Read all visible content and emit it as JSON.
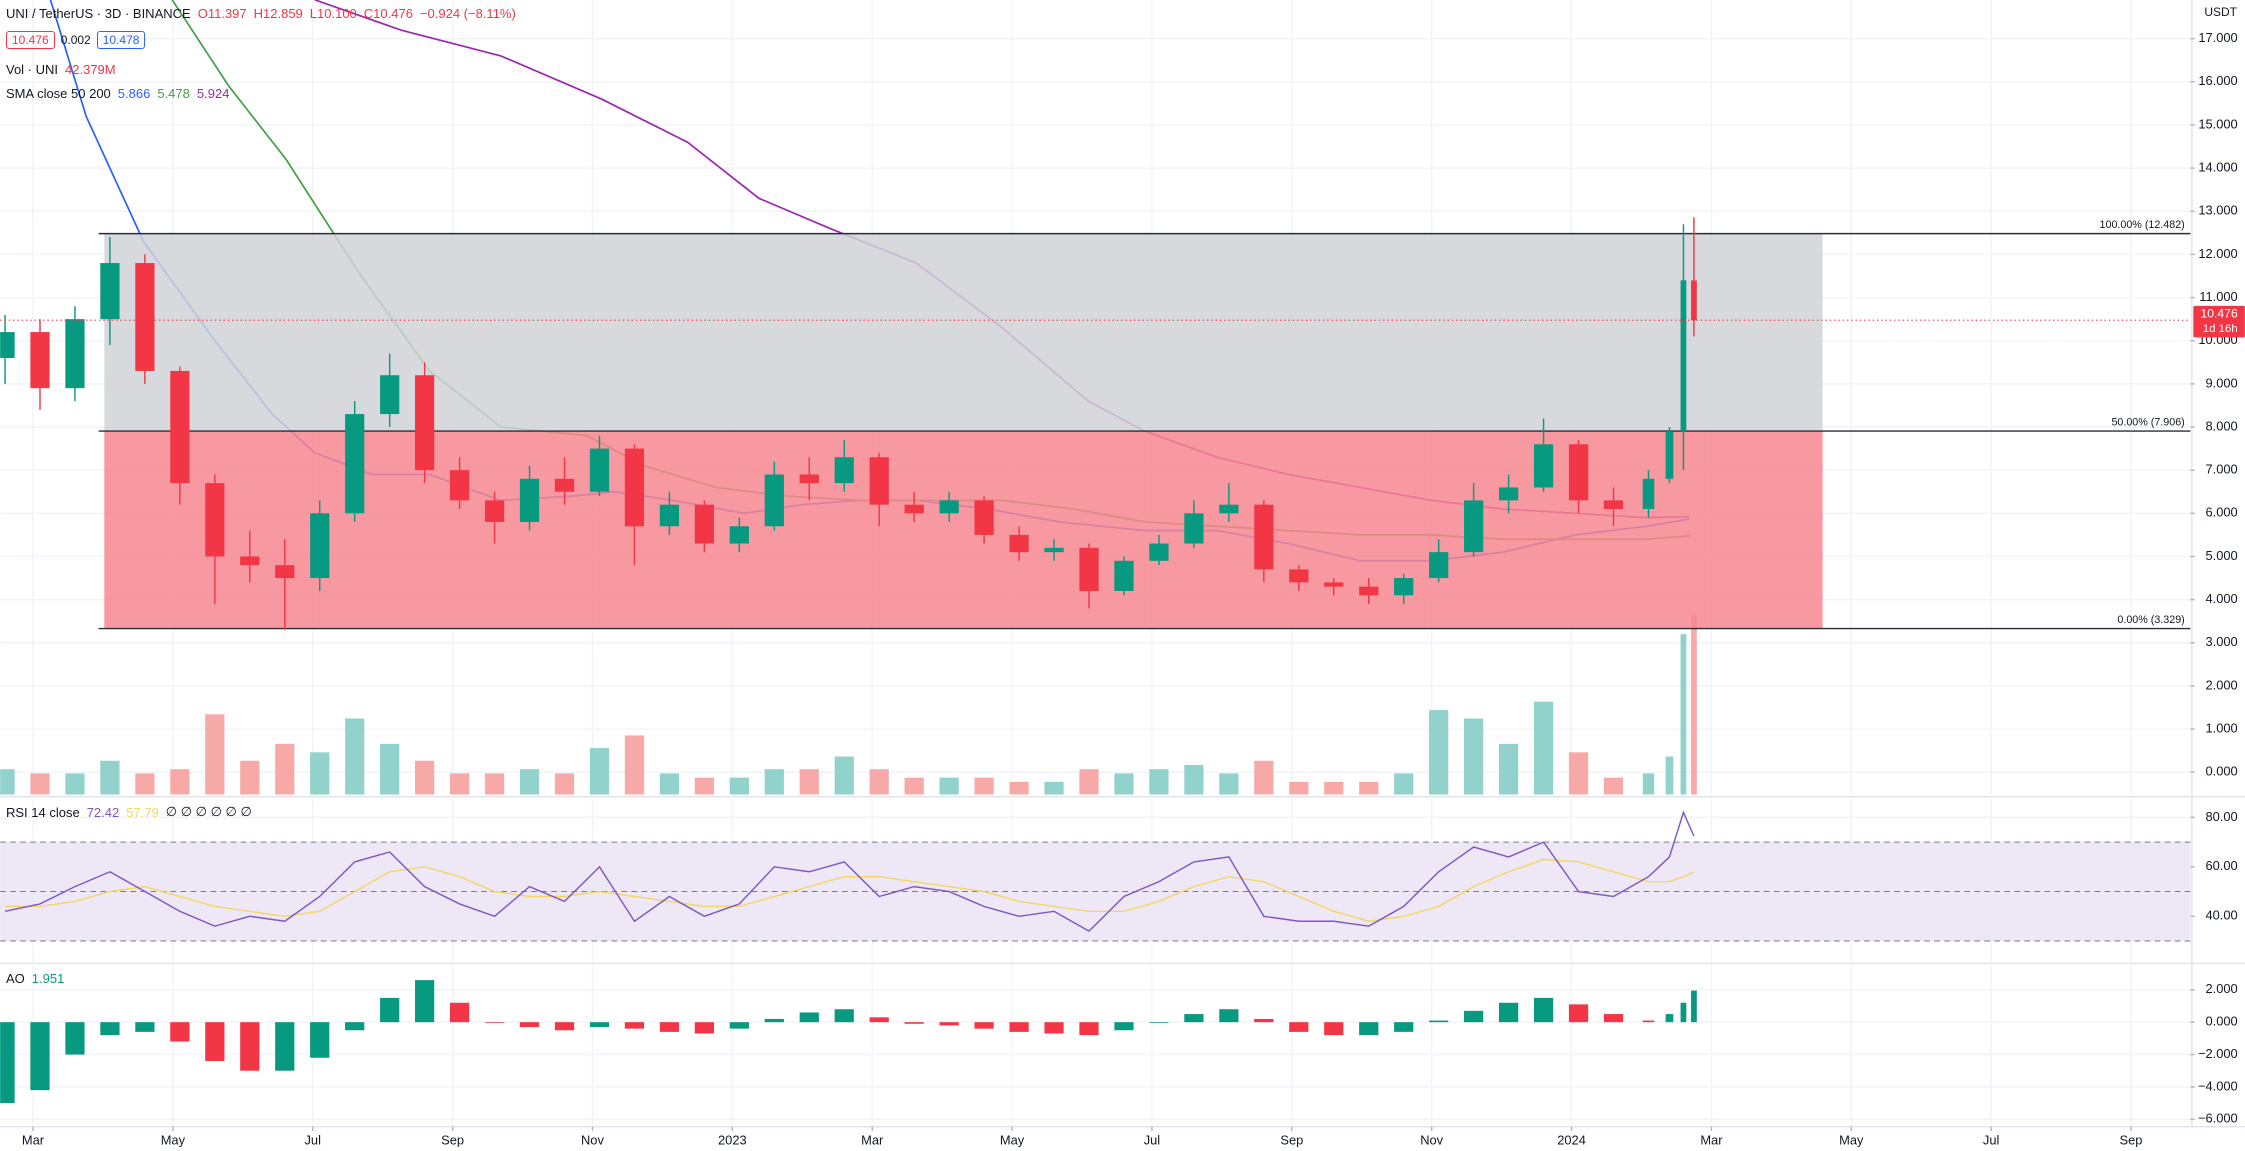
{
  "chart_data": [
    {
      "type": "candlestick",
      "title": "UNI / TetherUS · 3D · BINANCE",
      "ohlc_labels": [
        "O11.397",
        "H12.859",
        "L10.100",
        "C10.476",
        "−0.924 (−8.11%)"
      ],
      "price_boxes": [
        "10.476",
        "0.002",
        "10.478"
      ],
      "currency": "USDT",
      "indicator_name": "SMA close 50 200",
      "x": [
        -0.4,
        0.1,
        0.6,
        1.1,
        1.6,
        2.1,
        2.6,
        3.1,
        3.6,
        4.1,
        4.6,
        5.1,
        5.6,
        6.1,
        6.6,
        7.1,
        7.6,
        8.1,
        8.6,
        9.1,
        9.6,
        10.1,
        10.6,
        11.1,
        11.6,
        12.1,
        12.6,
        13.1,
        13.6,
        14.1,
        14.6,
        15.1,
        15.6,
        16.1,
        16.6,
        17.1,
        17.6,
        18.1,
        18.6,
        19.1,
        19.6,
        20.1,
        20.6,
        21.1,
        21.6,
        22.1,
        22.6,
        23.1,
        23.4,
        23.6,
        23.75
      ],
      "open": [
        9.6,
        10.2,
        8.9,
        10.5,
        11.8,
        9.3,
        6.7,
        5.0,
        4.8,
        4.5,
        6.0,
        8.3,
        9.2,
        7.0,
        6.3,
        5.8,
        6.8,
        6.5,
        7.5,
        5.7,
        6.2,
        5.3,
        5.7,
        6.9,
        6.7,
        7.3,
        6.2,
        6.0,
        6.3,
        5.5,
        5.1,
        5.2,
        4.2,
        4.9,
        5.3,
        6.0,
        6.2,
        4.7,
        4.4,
        4.3,
        4.1,
        4.5,
        5.1,
        6.3,
        6.6,
        7.6,
        6.3,
        6.1,
        6.8,
        7.9,
        11.397
      ],
      "high": [
        10.6,
        10.5,
        10.8,
        12.4,
        12.0,
        9.4,
        6.9,
        5.6,
        5.4,
        6.3,
        8.6,
        9.7,
        9.5,
        7.3,
        6.5,
        7.1,
        7.3,
        7.8,
        7.6,
        6.5,
        6.3,
        5.9,
        7.2,
        7.3,
        7.7,
        7.4,
        6.5,
        6.5,
        6.4,
        5.7,
        5.4,
        5.3,
        5.0,
        5.5,
        6.3,
        6.7,
        6.3,
        4.8,
        4.5,
        4.5,
        4.6,
        5.4,
        6.7,
        6.9,
        8.2,
        7.7,
        6.6,
        7.0,
        8.0,
        12.7,
        12.859
      ],
      "low": [
        9.0,
        8.4,
        8.6,
        9.9,
        9.0,
        6.2,
        3.9,
        4.4,
        3.3,
        4.2,
        5.8,
        8.0,
        6.7,
        6.1,
        5.3,
        5.6,
        6.2,
        6.4,
        4.8,
        5.5,
        5.1,
        5.1,
        5.6,
        6.3,
        6.5,
        5.7,
        5.8,
        5.8,
        5.3,
        4.9,
        4.9,
        3.8,
        4.1,
        4.8,
        5.2,
        5.8,
        4.4,
        4.2,
        4.1,
        3.9,
        3.9,
        4.4,
        5.0,
        6.0,
        6.5,
        6.0,
        5.7,
        5.9,
        6.7,
        7.0,
        10.1
      ],
      "close": [
        10.2,
        8.9,
        10.5,
        11.8,
        9.3,
        6.7,
        5.0,
        4.8,
        4.5,
        6.0,
        8.3,
        9.2,
        7.0,
        6.3,
        5.8,
        6.8,
        6.5,
        7.5,
        5.7,
        6.2,
        5.3,
        5.7,
        6.9,
        6.7,
        7.3,
        6.2,
        6.0,
        6.3,
        5.5,
        5.1,
        5.2,
        4.2,
        4.9,
        5.3,
        6.0,
        6.2,
        4.7,
        4.4,
        4.3,
        4.1,
        4.5,
        5.1,
        6.3,
        6.6,
        7.6,
        6.3,
        6.1,
        6.8,
        7.9,
        11.4,
        10.476
      ],
      "up_color": "#089981",
      "down_color": "#f23645",
      "volume": {
        "name": "Vol · UNI",
        "last_label": "42.379M",
        "up_color": "#92d2cc",
        "down_color": "#f7a9a7",
        "values": [
          6,
          5,
          5,
          8,
          5,
          6,
          19,
          8,
          12,
          10,
          18,
          12,
          8,
          5,
          5,
          6,
          5,
          11,
          14,
          5,
          4,
          4,
          6,
          6,
          9,
          6,
          4,
          4,
          4,
          3,
          3,
          6,
          5,
          6,
          7,
          5,
          8,
          3,
          3,
          3,
          5,
          20,
          18,
          12,
          22,
          10,
          4,
          5,
          9,
          38,
          42.379
        ]
      },
      "series": [
        {
          "value_label": "5.866",
          "color": "#2962ff",
          "x": [
            0.25,
            0.76,
            1.58,
            2.6,
            3.42,
            4.03,
            4.85,
            5.67,
            6.69,
            7.72,
            8.33,
            9.15,
            10.17,
            10.99,
            11.81,
            12.63,
            13.65,
            14.68,
            15.9,
            16.93,
            17.95,
            18.98,
            20.0,
            21.02,
            22.05,
            23.07,
            23.68
          ],
          "values": [
            17.9,
            15.2,
            12.3,
            10.0,
            8.3,
            7.4,
            6.9,
            6.9,
            6.3,
            6.4,
            6.5,
            6.3,
            6.0,
            6.2,
            6.3,
            6.3,
            6.1,
            5.8,
            5.6,
            5.6,
            5.3,
            4.9,
            4.9,
            5.1,
            5.5,
            5.7,
            5.866
          ]
        },
        {
          "value_label": "5.478",
          "color": "#43a047",
          "x": [
            1.99,
            2.8,
            3.62,
            4.65,
            5.67,
            6.69,
            7.92,
            8.74,
            9.76,
            10.79,
            11.81,
            12.84,
            13.86,
            14.88,
            15.9,
            16.93,
            17.95,
            18.98,
            20.0,
            21.02,
            22.05,
            23.07,
            23.68
          ],
          "values": [
            17.9,
            15.9,
            14.2,
            11.6,
            9.3,
            8.0,
            7.8,
            7.1,
            6.6,
            6.4,
            6.3,
            6.3,
            6.3,
            6.1,
            5.8,
            5.7,
            5.6,
            5.5,
            5.5,
            5.4,
            5.4,
            5.4,
            5.478
          ]
        },
        {
          "value_label": "5.924",
          "color": "#9c27b0",
          "x": [
            4.03,
            5.26,
            6.69,
            8.13,
            9.36,
            10.38,
            11.4,
            12.63,
            13.86,
            15.09,
            15.9,
            16.93,
            17.95,
            18.98,
            20.0,
            21.02,
            22.05,
            23.07,
            23.68
          ],
          "values": [
            17.9,
            17.2,
            16.6,
            15.6,
            14.6,
            13.3,
            12.6,
            11.8,
            10.3,
            8.6,
            7.9,
            7.3,
            6.9,
            6.6,
            6.3,
            6.1,
            6.0,
            5.9,
            5.924
          ]
        }
      ],
      "fib": {
        "x": [
          1.02,
          25.59
        ],
        "levels": [
          {
            "value": 12.482,
            "label": "100.00% (12.482)"
          },
          {
            "value": 7.906,
            "label": "50.00% (7.906)"
          },
          {
            "value": 3.329,
            "label": "0.00% (3.329)"
          }
        ],
        "colors": [
          "#d1d2d7",
          "#f7868f"
        ]
      },
      "last_price": {
        "value": 10.476,
        "label": "10.476",
        "countdown": "1d 16h"
      },
      "xlim": [
        -0.47,
        30.85
      ],
      "xticks": [
        {
          "value": 0,
          "label": "Mar"
        },
        {
          "value": 2,
          "label": "May"
        },
        {
          "value": 4,
          "label": "Jul"
        },
        {
          "value": 6,
          "label": "Sep"
        },
        {
          "value": 8,
          "label": "Nov"
        },
        {
          "value": 10,
          "label": "2023"
        },
        {
          "value": 12,
          "label": "Mar"
        },
        {
          "value": 14,
          "label": "May"
        },
        {
          "value": 16,
          "label": "Jul"
        },
        {
          "value": 18,
          "label": "Sep"
        },
        {
          "value": 20,
          "label": "Nov"
        },
        {
          "value": 22,
          "label": "2024"
        },
        {
          "value": 24,
          "label": "Mar"
        },
        {
          "value": 26,
          "label": "May"
        },
        {
          "value": 28,
          "label": "Jul"
        },
        {
          "value": 30,
          "label": "Sep"
        }
      ],
      "ylim": [
        -0.517,
        17.896
      ],
      "yticks": [
        {
          "value": 0,
          "label": "0.000"
        },
        {
          "value": 1,
          "label": "1.000"
        },
        {
          "value": 2,
          "label": "2.000"
        },
        {
          "value": 3,
          "label": "3.000"
        },
        {
          "value": 4,
          "label": "4.000"
        },
        {
          "value": 5,
          "label": "5.000"
        },
        {
          "value": 6,
          "label": "6.000"
        },
        {
          "value": 7,
          "label": "7.000"
        },
        {
          "value": 8,
          "label": "8.000"
        },
        {
          "value": 9,
          "label": "9.000"
        },
        {
          "value": 10,
          "label": "10.000"
        },
        {
          "value": 11,
          "label": "11.000"
        },
        {
          "value": 12,
          "label": "12.000"
        },
        {
          "value": 13,
          "label": "13.000"
        },
        {
          "value": 14,
          "label": "14.000"
        },
        {
          "value": 15,
          "label": "15.000"
        },
        {
          "value": 16,
          "label": "16.000"
        },
        {
          "value": 17,
          "label": "17.000"
        }
      ],
      "grid": true
    },
    {
      "type": "line",
      "title": "RSI 14 close",
      "extra_label": "∅ ∅ ∅ ∅ ∅ ∅",
      "series": [
        {
          "value_label": "72.42",
          "color": "#7e57c2",
          "values": [
            42,
            45,
            52,
            58,
            50,
            42,
            36,
            40,
            38,
            48,
            62,
            66,
            52,
            45,
            40,
            52,
            46,
            60,
            38,
            48,
            40,
            45,
            60,
            58,
            62,
            48,
            52,
            50,
            44,
            40,
            42,
            34,
            48,
            54,
            62,
            64,
            40,
            38,
            38,
            36,
            44,
            58,
            68,
            64,
            70,
            50,
            48,
            56,
            64,
            82,
            72.42
          ]
        },
        {
          "value_label": "57.79",
          "color": "#f5d565",
          "values": [
            44,
            44,
            46,
            50,
            52,
            48,
            44,
            42,
            40,
            42,
            50,
            58,
            60,
            56,
            50,
            48,
            48,
            50,
            48,
            46,
            44,
            44,
            48,
            52,
            56,
            56,
            54,
            52,
            50,
            46,
            44,
            42,
            42,
            46,
            52,
            56,
            54,
            48,
            42,
            38,
            40,
            44,
            52,
            58,
            63,
            62,
            58,
            54,
            54,
            56,
            57.79
          ]
        }
      ],
      "levels": [
        70,
        50,
        30
      ],
      "band_color": "#ede7f6",
      "ylim": [
        21.5,
        87.5
      ],
      "yticks": [
        {
          "value": 40,
          "label": "40.00"
        },
        {
          "value": 60,
          "label": "60.00"
        },
        {
          "value": 80,
          "label": "80.00"
        }
      ],
      "grid": true
    },
    {
      "type": "bar",
      "title": "AO",
      "value_label": "1.951",
      "up_color": "#089981",
      "down_color": "#f23645",
      "values": [
        -5.0,
        -4.2,
        -2.0,
        -0.8,
        -0.6,
        -1.2,
        -2.4,
        -3.0,
        -3.0,
        -2.2,
        -0.5,
        1.5,
        2.6,
        1.2,
        0.0,
        -0.3,
        -0.5,
        -0.3,
        -0.4,
        -0.6,
        -0.7,
        -0.4,
        0.2,
        0.6,
        0.8,
        0.3,
        -0.1,
        -0.2,
        -0.4,
        -0.6,
        -0.7,
        -0.8,
        -0.5,
        0.0,
        0.5,
        0.8,
        0.2,
        -0.6,
        -0.8,
        -0.8,
        -0.6,
        0.1,
        0.7,
        1.2,
        1.5,
        1.1,
        0.5,
        0.1,
        0.5,
        1.2,
        1.951
      ],
      "ylim": [
        -6.37,
        3.54
      ],
      "yticks": [
        {
          "value": 2,
          "label": "2.000"
        },
        {
          "value": 0,
          "label": "0.000"
        },
        {
          "value": -2,
          "label": "−2.000"
        },
        {
          "value": -4,
          "label": "−4.000"
        },
        {
          "value": -6,
          "label": "−6.000"
        }
      ],
      "grid": true
    }
  ]
}
